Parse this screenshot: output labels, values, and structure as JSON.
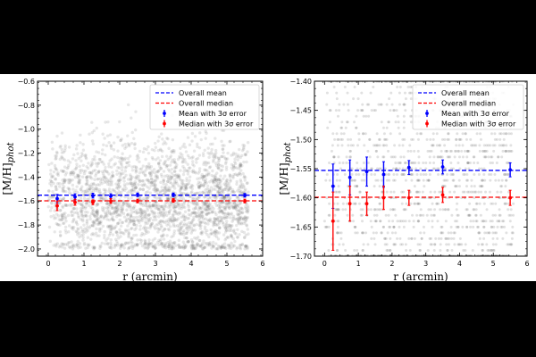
{
  "figure": {
    "background": "#000000"
  },
  "chart_data": [
    {
      "type": "scatter",
      "panel": "left",
      "xlabel": "r (arcmin)",
      "ylabel_main": "[M/H]",
      "ylabel_sub": "phot",
      "xlim": [
        -0.3,
        6.0
      ],
      "ylim": [
        -2.06,
        -0.6
      ],
      "xticks": [
        0,
        1,
        2,
        3,
        4,
        5,
        6
      ],
      "xtick_labels": [
        "0",
        "1",
        "2",
        "3",
        "4",
        "5",
        "6"
      ],
      "yticks": [
        -0.6,
        -0.8,
        -1.0,
        -1.2,
        -1.4,
        -1.6,
        -1.8,
        -2.0
      ],
      "ytick_labels": [
        "−0.6",
        "−0.8",
        "−1.0",
        "−1.2",
        "−1.4",
        "−1.6",
        "−1.8",
        "−2.0"
      ],
      "legend_position": "top-right",
      "legend": [
        {
          "label": "Overall mean",
          "style": "dashed",
          "color": "#0000ff"
        },
        {
          "label": "Overall median",
          "style": "dashed",
          "color": "#ff0000"
        },
        {
          "label": "Mean with 3σ error",
          "style": "errorbar",
          "color": "#0000ff"
        },
        {
          "label": "Median with 3σ error",
          "style": "errorbar",
          "color": "#ff0000"
        }
      ],
      "overall_mean": -1.551,
      "overall_median": -1.598,
      "mean_points": [
        {
          "x": 0.25,
          "y": -1.58,
          "err": 0.035
        },
        {
          "x": 0.75,
          "y": -1.565,
          "err": 0.025
        },
        {
          "x": 1.25,
          "y": -1.555,
          "err": 0.02
        },
        {
          "x": 1.75,
          "y": -1.56,
          "err": 0.02
        },
        {
          "x": 2.5,
          "y": -1.548,
          "err": 0.015
        },
        {
          "x": 3.5,
          "y": -1.548,
          "err": 0.015
        },
        {
          "x": 5.5,
          "y": -1.552,
          "err": 0.015
        }
      ],
      "median_points": [
        {
          "x": 0.25,
          "y": -1.64,
          "err": 0.04
        },
        {
          "x": 0.75,
          "y": -1.61,
          "err": 0.025
        },
        {
          "x": 1.25,
          "y": -1.61,
          "err": 0.02
        },
        {
          "x": 1.75,
          "y": -1.6,
          "err": 0.02
        },
        {
          "x": 2.5,
          "y": -1.6,
          "err": 0.015
        },
        {
          "x": 3.5,
          "y": -1.595,
          "err": 0.015
        },
        {
          "x": 5.5,
          "y": -1.6,
          "err": 0.015
        }
      ],
      "scatter_x_range": [
        0.0,
        5.6
      ],
      "scatter_y_range": [
        -2.0,
        -0.6
      ],
      "scatter_y_center": -1.6,
      "scatter_y_sd": 0.2
    },
    {
      "type": "scatter",
      "panel": "right",
      "xlabel": "r (arcmin)",
      "ylabel_main": "[M/H]",
      "ylabel_sub": "phot",
      "xlim": [
        -0.3,
        6.0
      ],
      "ylim": [
        -1.7,
        -1.4
      ],
      "xticks": [
        0,
        1,
        2,
        3,
        4,
        5,
        6
      ],
      "xtick_labels": [
        "0",
        "1",
        "2",
        "3",
        "4",
        "5",
        "6"
      ],
      "yticks": [
        -1.4,
        -1.45,
        -1.5,
        -1.55,
        -1.6,
        -1.65,
        -1.7
      ],
      "ytick_labels": [
        "−1.40",
        "−1.45",
        "−1.50",
        "−1.55",
        "−1.60",
        "−1.65",
        "−1.70"
      ],
      "legend_position": "top-right",
      "legend": [
        {
          "label": "Overall mean",
          "style": "dashed",
          "color": "#0000ff"
        },
        {
          "label": "Overall median",
          "style": "dashed",
          "color": "#ff0000"
        },
        {
          "label": "Mean with 3σ error",
          "style": "errorbar",
          "color": "#0000ff"
        },
        {
          "label": "Median with 3σ error",
          "style": "errorbar",
          "color": "#ff0000"
        }
      ],
      "overall_mean": -1.553,
      "overall_median": -1.599,
      "mean_points": [
        {
          "x": 0.25,
          "y": -1.58,
          "err": 0.038
        },
        {
          "x": 0.75,
          "y": -1.565,
          "err": 0.03
        },
        {
          "x": 1.25,
          "y": -1.555,
          "err": 0.025
        },
        {
          "x": 1.75,
          "y": -1.56,
          "err": 0.022
        },
        {
          "x": 2.5,
          "y": -1.548,
          "err": 0.012
        },
        {
          "x": 3.5,
          "y": -1.547,
          "err": 0.012
        },
        {
          "x": 5.5,
          "y": -1.552,
          "err": 0.012
        }
      ],
      "median_points": [
        {
          "x": 0.25,
          "y": -1.64,
          "err": 0.05
        },
        {
          "x": 0.75,
          "y": -1.61,
          "err": 0.03
        },
        {
          "x": 1.25,
          "y": -1.61,
          "err": 0.02
        },
        {
          "x": 1.75,
          "y": -1.6,
          "err": 0.02
        },
        {
          "x": 2.5,
          "y": -1.6,
          "err": 0.013
        },
        {
          "x": 3.5,
          "y": -1.595,
          "err": 0.013
        },
        {
          "x": 5.5,
          "y": -1.6,
          "err": 0.013
        }
      ],
      "scatter_x_range": [
        0.0,
        5.6
      ],
      "scatter_y_range": [
        -1.7,
        -1.4
      ],
      "scatter_y_center": -1.58,
      "scatter_y_sd": 0.12
    }
  ]
}
